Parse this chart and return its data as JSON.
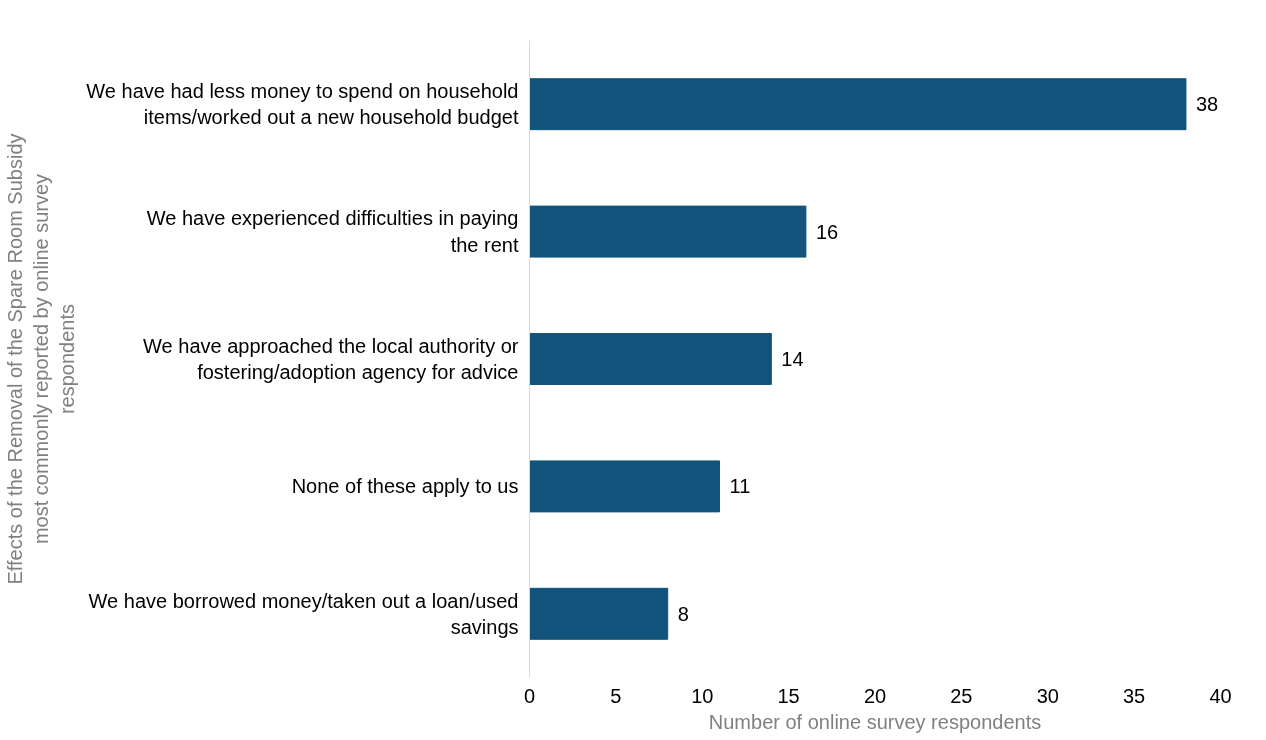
{
  "chart_data": {
    "type": "bar",
    "orientation": "horizontal",
    "ylabel": "Effects of the Removal of the Spare Room Subsidy most commonly reported by online survey respondents",
    "xlabel": "Number of online survey respondents",
    "categories": [
      "We have had less money to spend on household items/worked out a new household budget",
      "We have experienced difficulties in paying the rent",
      "We have approached the local authority or fostering/adoption agency for advice",
      "None of these apply to us",
      "We have borrowed money/taken out a loan/used savings"
    ],
    "values": [
      38,
      16,
      14,
      11,
      8
    ],
    "color": "#11537a",
    "data_labels": true,
    "xlim": [
      0,
      40
    ],
    "xticks": [
      0,
      5,
      10,
      15,
      20,
      25,
      30,
      35,
      40
    ],
    "grid": false
  }
}
